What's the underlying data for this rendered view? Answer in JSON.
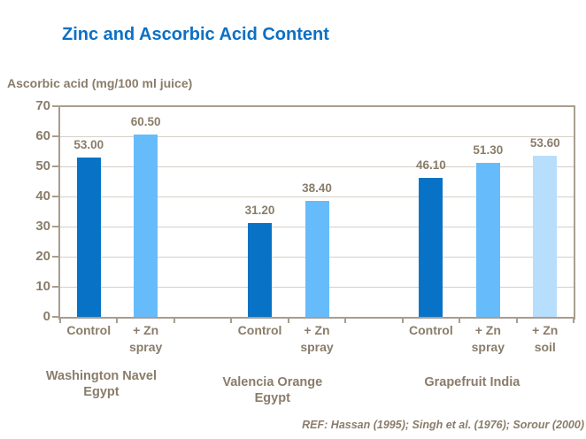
{
  "colors": {
    "title_blue": "#0B70C5",
    "text_brown": "#8A7C6A",
    "axis": "#A89D8F",
    "gridline": "#D5CFC7"
  },
  "chart_data": {
    "type": "bar",
    "title": "Zinc and Ascorbic Acid Content",
    "ylabel": "Ascorbic acid (mg/100 ml juice)",
    "xlabel": "",
    "ylim": [
      0,
      70
    ],
    "yticks": [
      "70",
      "60",
      "50",
      "40",
      "30",
      "20",
      "10",
      "0"
    ],
    "grid": "horizontal",
    "legend": "none",
    "series_colors": {
      "control": "#0873C6",
      "zn_spray": "#66BCFB",
      "zn_soil": "#B7DEFC"
    },
    "groups": [
      {
        "label_lines": [
          "Washington Navel",
          "Egypt"
        ],
        "bars": [
          {
            "category_lines": [
              "Control"
            ],
            "series": "control",
            "value": 53.0,
            "label": "53.00"
          },
          {
            "category_lines": [
              "+ Zn",
              "spray"
            ],
            "series": "zn_spray",
            "value": 60.5,
            "label": "60.50"
          }
        ]
      },
      {
        "label_lines": [
          "Valencia Orange",
          "Egypt"
        ],
        "bars": [
          {
            "category_lines": [
              "Control"
            ],
            "series": "control",
            "value": 31.2,
            "label": "31.20"
          },
          {
            "category_lines": [
              "+ Zn",
              "spray"
            ],
            "series": "zn_spray",
            "value": 38.4,
            "label": "38.40"
          }
        ]
      },
      {
        "label_lines": [
          "Grapefruit India"
        ],
        "bars": [
          {
            "category_lines": [
              "Control"
            ],
            "series": "control",
            "value": 46.1,
            "label": "46.10"
          },
          {
            "category_lines": [
              "+ Zn",
              "spray"
            ],
            "series": "zn_spray",
            "value": 51.3,
            "label": "51.30"
          },
          {
            "category_lines": [
              "+ Zn",
              "soil"
            ],
            "series": "zn_soil",
            "value": 53.6,
            "label": "53.60"
          }
        ]
      }
    ],
    "ref": "REF: Hassan (1995); Singh et al. (1976); Sorour (2000)"
  }
}
